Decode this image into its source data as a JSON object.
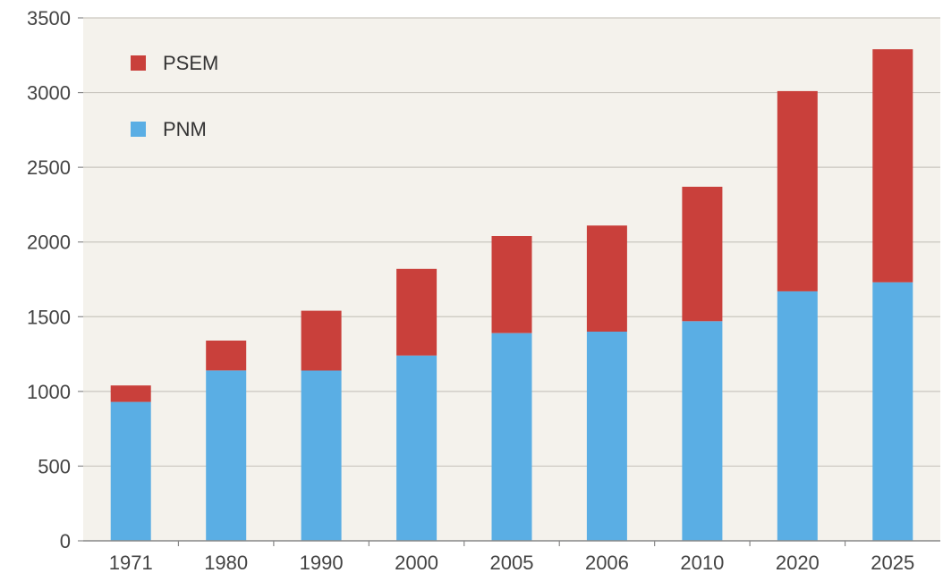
{
  "chart_data": {
    "type": "bar",
    "stacked": true,
    "categories": [
      "1971",
      "1980",
      "1990",
      "2000",
      "2005",
      "2006",
      "2010",
      "2020",
      "2025"
    ],
    "series": [
      {
        "name": "PNM",
        "color": "#5aaee4",
        "values": [
          930,
          1140,
          1140,
          1240,
          1390,
          1400,
          1470,
          1670,
          1730
        ]
      },
      {
        "name": "PSEM",
        "color": "#c9403b",
        "values": [
          110,
          200,
          400,
          580,
          650,
          710,
          900,
          1340,
          1560
        ]
      }
    ],
    "yticks": [
      0,
      500,
      1000,
      1500,
      2000,
      2500,
      3000,
      3500
    ],
    "ylim": [
      0,
      3500
    ],
    "grid": true,
    "legend": {
      "placement": "top-left",
      "order": [
        "PSEM",
        "PNM"
      ]
    },
    "title": "",
    "xlabel": "",
    "ylabel": ""
  }
}
